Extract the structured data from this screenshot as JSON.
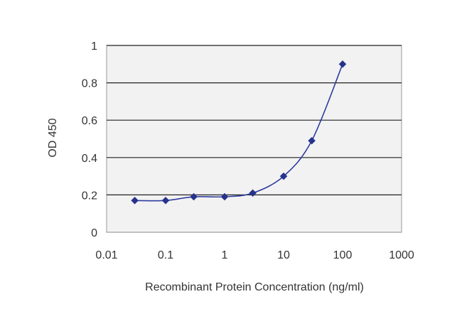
{
  "chart_data": {
    "type": "line",
    "title": "",
    "xlabel": "Recombinant Protein Concentration (ng/ml)",
    "ylabel": "OD 450",
    "xscale": "log",
    "xlim": [
      0.01,
      1000
    ],
    "ylim": [
      0,
      1
    ],
    "x_ticks": [
      "0.01",
      "0.1",
      "1",
      "10",
      "100",
      "1000"
    ],
    "y_ticks": [
      "0",
      "0.2",
      "0.4",
      "0.6",
      "0.8",
      "1"
    ],
    "grid": "horizontal",
    "legend": "none",
    "series": [
      {
        "x": [
          0.03,
          0.1,
          0.3,
          1,
          3,
          10,
          30,
          100
        ],
        "y": [
          0.17,
          0.17,
          0.19,
          0.19,
          0.21,
          0.3,
          0.49,
          0.9
        ]
      }
    ],
    "colors": {
      "plot_background": "#f2f2f2",
      "grid": "#222222",
      "line": "#2f3d9e",
      "marker": "#26338c"
    }
  }
}
